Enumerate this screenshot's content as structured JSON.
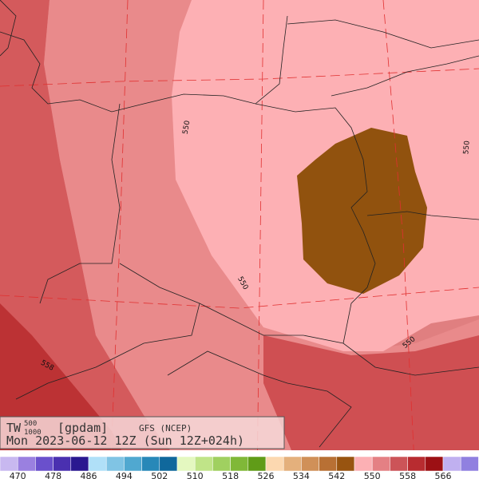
{
  "legend": {
    "title": "TW",
    "title_sup": "500",
    "title_sub": "1000",
    "unit": "[gpdam]",
    "model": "GFS (NCEP)",
    "valid_time": "Mon 2023-06-12 12Z (Sun 12Z+024h)"
  },
  "contour_labels": [
    "550",
    "550",
    "550",
    "550",
    "558"
  ],
  "colorbar": {
    "labels": [
      "470",
      "478",
      "486",
      "494",
      "502",
      "510",
      "518",
      "526",
      "534",
      "542",
      "550",
      "558",
      "566"
    ],
    "colors": [
      "#c8b8f0",
      "#9a80e0",
      "#6a50cc",
      "#4a30b0",
      "#2a1890",
      "#b0e0f8",
      "#80c4e4",
      "#50a8d0",
      "#2888b8",
      "#10689c",
      "#e4f8c0",
      "#c0e488",
      "#a0d060",
      "#80b838",
      "#609c18",
      "#fcd8b0",
      "#e4b07c",
      "#d09058",
      "#b87034",
      "#985410",
      "#fcb0b4",
      "#e48084",
      "#cc5458",
      "#b82c30",
      "#9c1014",
      "#c0b0f0",
      "#9080e0"
    ]
  }
}
